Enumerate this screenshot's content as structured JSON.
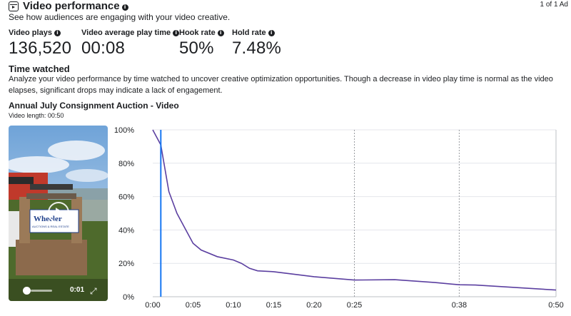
{
  "header": {
    "title": "Video performance",
    "subtitle": "See how audiences are engaging with your video creative.",
    "ad_count": "1 of 1 Ad"
  },
  "metrics": [
    {
      "label": "Video plays",
      "value": "136,520"
    },
    {
      "label": "Video average play time",
      "value": "00:08"
    },
    {
      "label": "Hook rate",
      "value": "50%"
    },
    {
      "label": "Hold rate",
      "value": "7.48%"
    }
  ],
  "time_watched": {
    "title": "Time watched",
    "description": "Analyze your video performance by time watched to uncover creative optimization opportunities. Though a decrease in video play time is normal as the video elapses, significant drops may indicate a lack of engagement."
  },
  "video": {
    "title": "Annual July Consignment Auction - Video",
    "length": "Video length: 00:50",
    "current_time": "0:01",
    "sign_text": "Wheeler",
    "sign_subtext": "AUCTIONS & REAL ESTATE",
    "progress": 0.02
  },
  "colors": {
    "line": "#5b3fa0",
    "cursor": "#1877f2"
  },
  "chart_data": {
    "type": "line",
    "x_tick_labels": [
      "0:00",
      "0:05",
      "0:10",
      "0:15",
      "0:20",
      "0:25",
      "0:38",
      "0:50"
    ],
    "x_tick_values": [
      0,
      5,
      10,
      15,
      20,
      25,
      38,
      50
    ],
    "y_tick_labels": [
      "100%",
      "80%",
      "60%",
      "40%",
      "20%",
      "0%"
    ],
    "y_tick_values": [
      100,
      80,
      60,
      40,
      20,
      0
    ],
    "ylim": [
      0,
      100
    ],
    "xlim": [
      0,
      50
    ],
    "dashed_x": [
      25,
      38
    ],
    "cursor_x": 1,
    "points": [
      [
        0,
        100
      ],
      [
        1,
        91
      ],
      [
        2,
        63
      ],
      [
        3,
        50
      ],
      [
        4,
        41
      ],
      [
        5,
        32
      ],
      [
        6,
        28
      ],
      [
        8,
        24
      ],
      [
        10,
        22
      ],
      [
        11,
        20
      ],
      [
        12,
        17
      ],
      [
        13,
        15.5
      ],
      [
        15,
        15
      ],
      [
        20,
        12
      ],
      [
        25,
        10
      ],
      [
        30,
        10.2
      ],
      [
        35,
        8.5
      ],
      [
        38,
        7.2
      ],
      [
        40,
        7
      ],
      [
        45,
        5.5
      ],
      [
        50,
        4
      ]
    ]
  }
}
